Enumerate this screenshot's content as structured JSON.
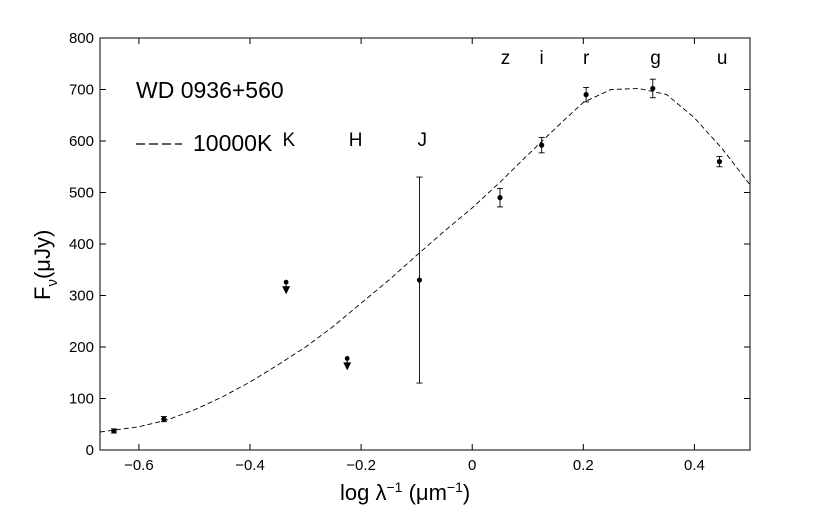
{
  "chart_data": {
    "type": "scatter",
    "title": "WD 0936+560",
    "xlabel": {
      "main": "log λ",
      "sup": "−1",
      "units_open": " (μm",
      "units_sup": "−1",
      "units_close": ")"
    },
    "ylabel": {
      "main": "F",
      "sub": "ν",
      "units": "(μJy)"
    },
    "xlim": [
      -0.67,
      0.5
    ],
    "ylim": [
      0,
      800
    ],
    "xticks": [
      -0.6,
      -0.4,
      -0.2,
      0,
      0.2,
      0.4
    ],
    "xtick_labels": [
      "−0.6",
      "−0.4",
      "−0.2",
      "0",
      "0.2",
      "0.4"
    ],
    "yticks": [
      0,
      100,
      200,
      300,
      400,
      500,
      600,
      700,
      800
    ],
    "ytick_labels": [
      "0",
      "100",
      "200",
      "300",
      "400",
      "500",
      "600",
      "700",
      "800"
    ],
    "grid": false,
    "legend": {
      "position": "top-left",
      "title": "WD 0936+560",
      "line_style": "dashed",
      "entry": "10000K"
    },
    "model": {
      "name": "10000K",
      "style": "dashed",
      "x": [
        -0.67,
        -0.6,
        -0.55,
        -0.5,
        -0.45,
        -0.4,
        -0.35,
        -0.3,
        -0.25,
        -0.2,
        -0.15,
        -0.1,
        -0.05,
        0.0,
        0.05,
        0.1,
        0.15,
        0.2,
        0.25,
        0.3,
        0.35,
        0.4,
        0.45,
        0.5
      ],
      "y": [
        35,
        45,
        58,
        78,
        103,
        132,
        165,
        200,
        240,
        285,
        330,
        378,
        425,
        470,
        520,
        573,
        625,
        675,
        700,
        702,
        690,
        645,
        585,
        515
      ]
    },
    "points": [
      {
        "x": -0.645,
        "y": 37,
        "err": 4
      },
      {
        "x": -0.555,
        "y": 60,
        "err": 5
      },
      {
        "x": -0.095,
        "y": 330,
        "err": 200
      },
      {
        "x": 0.05,
        "y": 490,
        "err": 18
      },
      {
        "x": 0.125,
        "y": 592,
        "err": 15
      },
      {
        "x": 0.205,
        "y": 690,
        "err": 14
      },
      {
        "x": 0.325,
        "y": 702,
        "err": 18
      },
      {
        "x": 0.445,
        "y": 560,
        "err": 10
      }
    ],
    "upper_limits": [
      {
        "label": "K",
        "x": -0.335,
        "y": 320
      },
      {
        "label": "H",
        "x": -0.225,
        "y": 172
      }
    ],
    "band_labels": [
      {
        "text": "K",
        "x": -0.33,
        "y": 590
      },
      {
        "text": "H",
        "x": -0.21,
        "y": 590
      },
      {
        "text": "J",
        "x": -0.09,
        "y": 590
      },
      {
        "text": "z",
        "x": 0.06,
        "y": 750
      },
      {
        "text": "i",
        "x": 0.125,
        "y": 750
      },
      {
        "text": "r",
        "x": 0.205,
        "y": 750
      },
      {
        "text": "g",
        "x": 0.33,
        "y": 750
      },
      {
        "text": "u",
        "x": 0.45,
        "y": 750
      }
    ]
  }
}
